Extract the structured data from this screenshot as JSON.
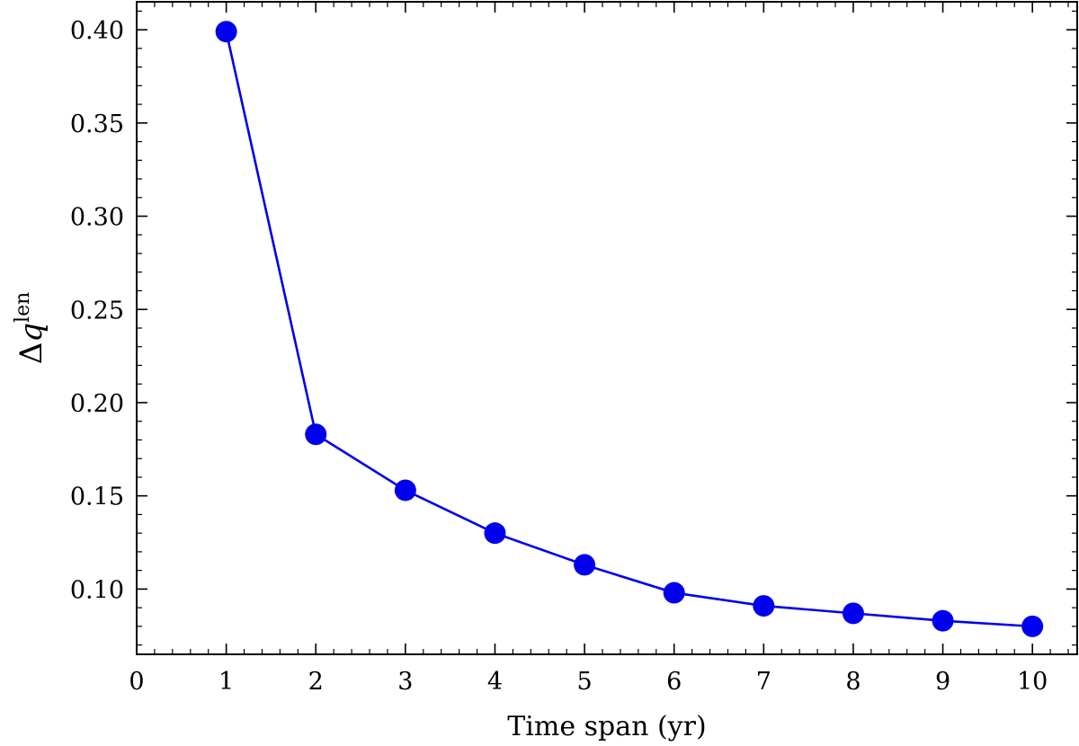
{
  "chart_data": {
    "type": "line",
    "xlabel": "Time span (yr)",
    "ylabel": {
      "delta": "Δ",
      "symbol": "q",
      "superscript": "len"
    },
    "xlim": [
      0,
      10.5
    ],
    "ylim": [
      0.065,
      0.415
    ],
    "x_ticks": [
      0,
      1,
      2,
      3,
      4,
      5,
      6,
      7,
      8,
      9,
      10
    ],
    "y_ticks": [
      "0.10",
      "0.15",
      "0.20",
      "0.25",
      "0.30",
      "0.35",
      "0.40"
    ],
    "grid": false,
    "series": [
      {
        "color": "#0000ee",
        "marker": "circle",
        "x": [
          1,
          2,
          3,
          4,
          5,
          6,
          7,
          8,
          9,
          10
        ],
        "y": [
          0.399,
          0.183,
          0.153,
          0.13,
          0.113,
          0.098,
          0.091,
          0.087,
          0.083,
          0.08
        ]
      }
    ]
  }
}
